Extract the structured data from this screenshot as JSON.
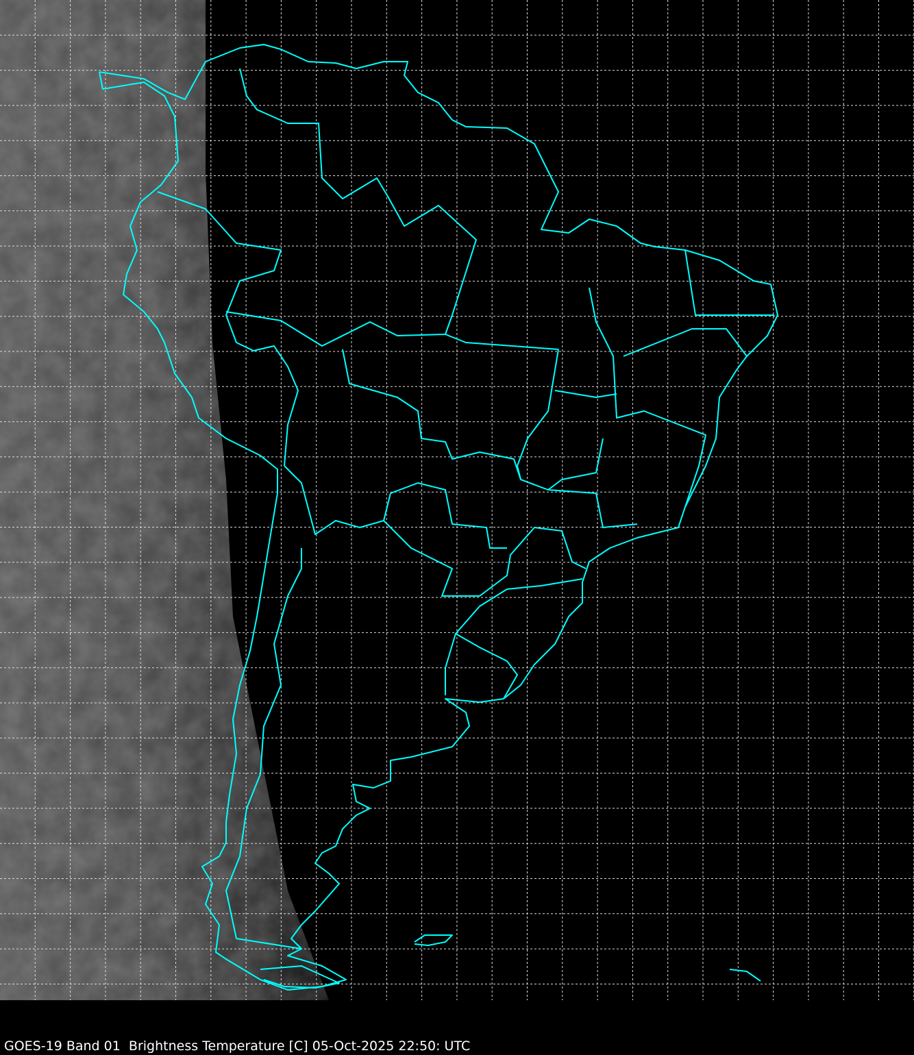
{
  "caption": {
    "satellite": "GOES-19",
    "band": "Band 01",
    "product": "Brightness Temperature [C]",
    "datetime": "05-Oct-2025 22:50: UTC"
  },
  "map": {
    "region": "South America",
    "background_color": "#000000",
    "coastline_color": "#00FFFF",
    "gridline_color": "#FFFFFF",
    "gridline_style": "dashed",
    "imagery_color": "grayscale"
  }
}
